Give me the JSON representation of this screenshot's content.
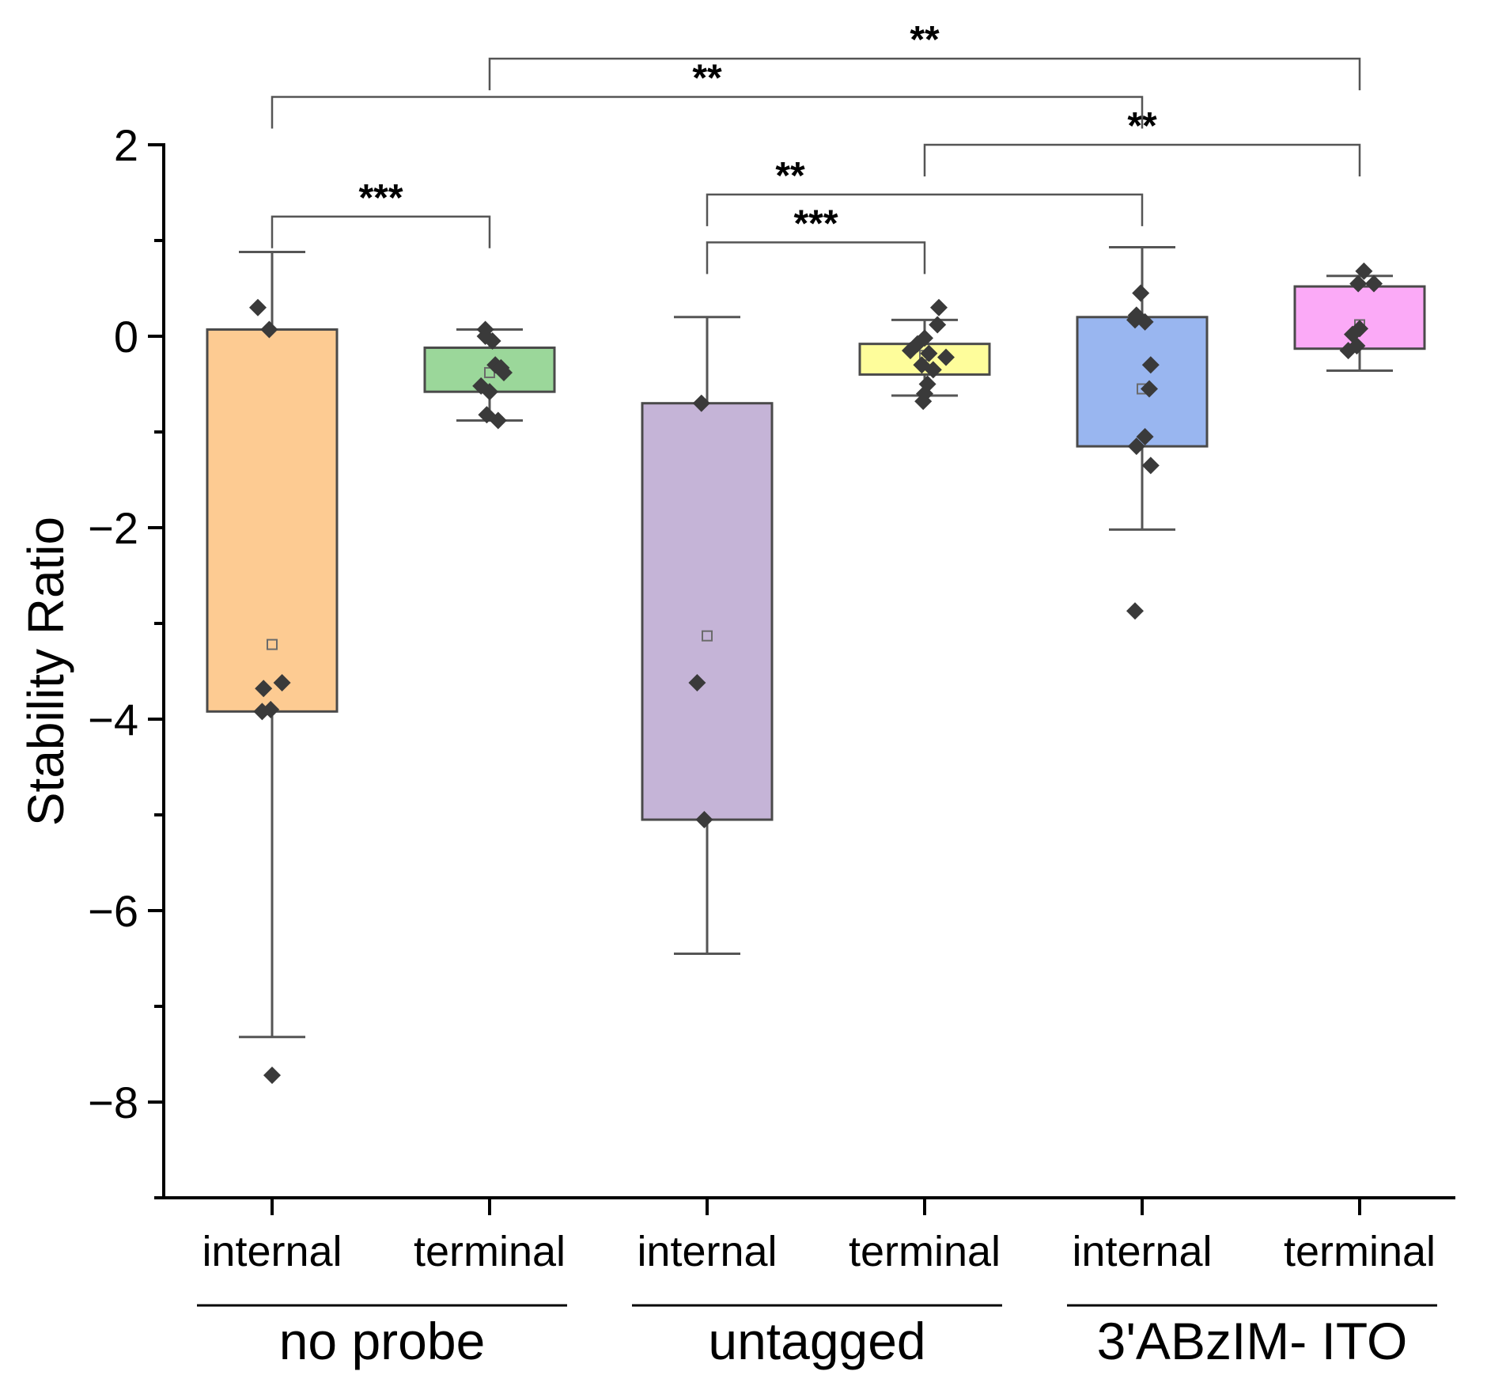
{
  "chart_data": {
    "type": "box",
    "title": "",
    "xlabel": "",
    "ylabel": "Stability Ratio",
    "ylim": [
      -9,
      2
    ],
    "yticks": [
      2,
      0,
      -2,
      -4,
      -6,
      -8
    ],
    "ytick_labels": [
      "2",
      "0",
      "−2",
      "−4",
      "−6",
      "−8"
    ],
    "grid": false,
    "groups": [
      {
        "label": "no probe",
        "categories": [
          0,
          1
        ]
      },
      {
        "label": "untagged",
        "categories": [
          2,
          3
        ]
      },
      {
        "label": "3'ABzIM- ITO",
        "categories": [
          4,
          5
        ]
      }
    ],
    "series": [
      {
        "category": "internal",
        "group": "no probe",
        "color": "#fdcb92",
        "q1": -3.92,
        "q3": 0.07,
        "whisker_low": -7.32,
        "whisker_high": 0.88,
        "mean": -3.22,
        "points": [
          0.3,
          0.07,
          -3.68,
          -3.62,
          -3.92,
          -3.9,
          -7.72
        ],
        "point_offsets": [
          -0.1,
          -0.02,
          -0.06,
          0.07,
          -0.07,
          -0.01,
          0.0
        ]
      },
      {
        "category": "terminal",
        "group": "no probe",
        "color": "#9bd79a",
        "q1": -0.58,
        "q3": -0.12,
        "whisker_low": -0.88,
        "whisker_high": 0.07,
        "mean": -0.38,
        "points": [
          0.07,
          0.0,
          -0.05,
          -0.3,
          -0.33,
          -0.38,
          -0.52,
          -0.58,
          -0.82,
          -0.88
        ],
        "point_offsets": [
          -0.03,
          -0.03,
          0.02,
          0.04,
          0.08,
          0.1,
          -0.06,
          0.0,
          -0.02,
          0.06
        ]
      },
      {
        "category": "internal",
        "group": "untagged",
        "color": "#c5b4d7",
        "q1": -5.05,
        "q3": -0.7,
        "whisker_low": -6.45,
        "whisker_high": 0.2,
        "mean": -3.13,
        "points": [
          -0.7,
          -3.62,
          -5.05
        ],
        "point_offsets": [
          -0.04,
          -0.07,
          -0.02
        ]
      },
      {
        "category": "terminal",
        "group": "untagged",
        "color": "#fefd9b",
        "q1": -0.4,
        "q3": -0.08,
        "whisker_low": -0.62,
        "whisker_high": 0.17,
        "mean": -0.2,
        "points": [
          0.3,
          0.12,
          -0.02,
          -0.08,
          -0.15,
          -0.18,
          -0.22,
          -0.3,
          -0.35,
          -0.5,
          -0.6,
          -0.68
        ],
        "point_offsets": [
          0.1,
          0.09,
          0.0,
          -0.05,
          -0.1,
          0.03,
          0.15,
          -0.02,
          0.06,
          0.02,
          0.0,
          -0.01
        ]
      },
      {
        "category": "internal",
        "group": "3'ABzIM- ITO",
        "color": "#99b6f0",
        "q1": -1.15,
        "q3": 0.2,
        "whisker_low": -2.02,
        "whisker_high": 0.93,
        "mean": -0.55,
        "points": [
          0.45,
          0.22,
          0.17,
          0.15,
          -0.3,
          -0.55,
          -1.05,
          -1.15,
          -1.35,
          -2.87
        ],
        "point_offsets": [
          -0.01,
          -0.04,
          -0.05,
          0.02,
          0.06,
          0.05,
          0.02,
          -0.04,
          0.06,
          -0.05
        ]
      },
      {
        "category": "terminal",
        "group": "3'ABzIM- ITO",
        "color": "#fbaaf7",
        "q1": -0.13,
        "q3": 0.52,
        "whisker_low": -0.36,
        "whisker_high": 0.63,
        "mean": 0.12,
        "points": [
          0.68,
          0.55,
          0.55,
          0.08,
          0.02,
          -0.1,
          -0.15
        ],
        "point_offsets": [
          0.03,
          -0.01,
          0.1,
          0.0,
          -0.05,
          -0.02,
          -0.08
        ]
      }
    ],
    "significance": [
      {
        "from": 0,
        "to": 1,
        "label": "***",
        "level": 1.25
      },
      {
        "from": 2,
        "to": 3,
        "label": "***",
        "level": 0.98
      },
      {
        "from": 2,
        "to": 4,
        "label": "**",
        "level": 1.48
      },
      {
        "from": 3,
        "to": 5,
        "label": "**",
        "level": 2.0
      },
      {
        "from": 0,
        "to": 4,
        "label": "**",
        "level": 2.5
      },
      {
        "from": 1,
        "to": 5,
        "label": "**",
        "level": 2.9
      }
    ]
  }
}
